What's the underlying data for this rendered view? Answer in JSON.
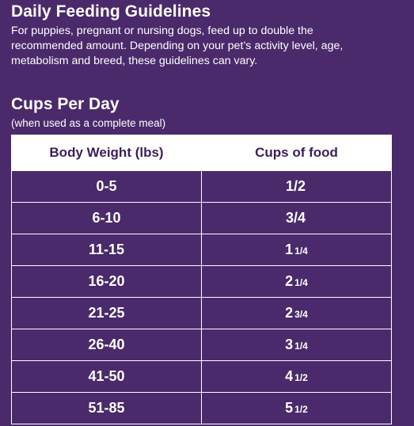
{
  "heading": "Daily Feeding Guidelines",
  "intro": "For puppies, pregnant or nursing dogs, feed up to double the recommended amount. Depending on your pet’s activity level, age, metabolism and breed, these guidelines can vary.",
  "cups_heading": "Cups Per Day",
  "cups_note": "(when used as a complete meal)",
  "table": {
    "headers": [
      "Body Weight (lbs)",
      "Cups of food"
    ],
    "rows": [
      {
        "weight": "0-5",
        "whole": "1/2",
        "frac": ""
      },
      {
        "weight": "6-10",
        "whole": "3/4",
        "frac": ""
      },
      {
        "weight": "11-15",
        "whole": "1",
        "frac": "1/4"
      },
      {
        "weight": "16-20",
        "whole": "2",
        "frac": "1/4"
      },
      {
        "weight": "21-25",
        "whole": "2",
        "frac": "3/4"
      },
      {
        "weight": "26-40",
        "whole": "3",
        "frac": "1/4"
      },
      {
        "weight": "41-50",
        "whole": "4",
        "frac": "1/2"
      },
      {
        "weight": "51-85",
        "whole": "5",
        "frac": "1/2"
      }
    ]
  },
  "colors": {
    "background": "#4a2a6a",
    "header_text": "#3c1f5a",
    "text": "#ffffff"
  }
}
